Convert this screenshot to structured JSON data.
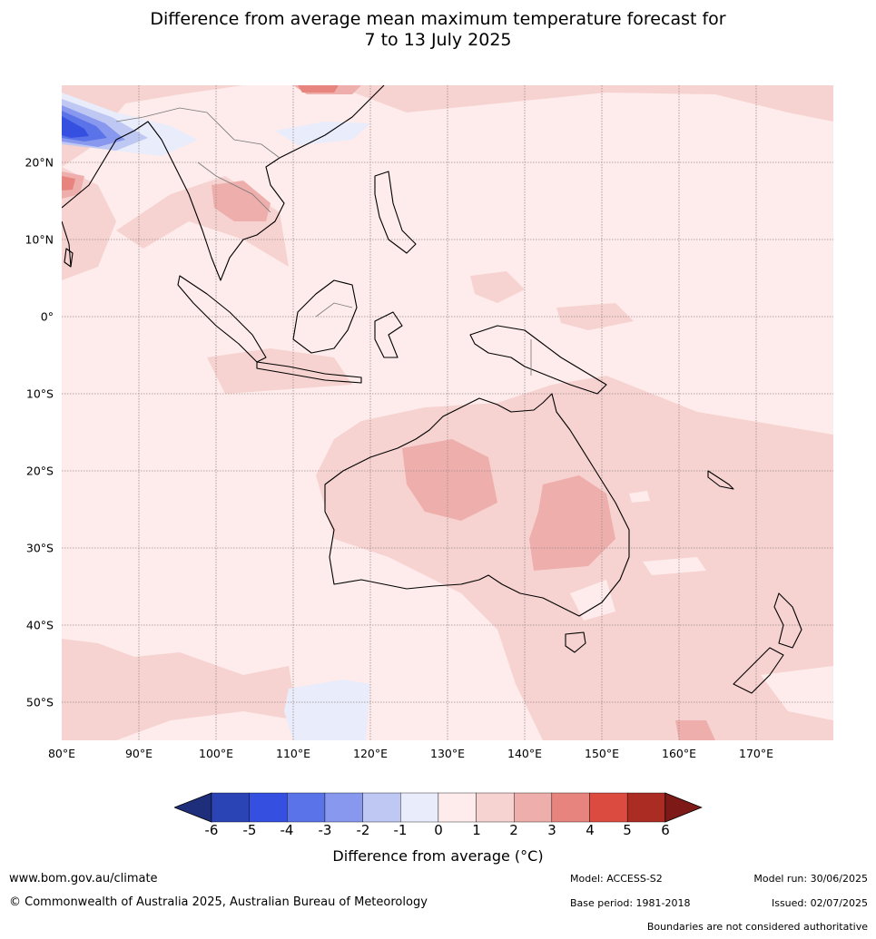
{
  "title": {
    "line1": "Difference from average mean maximum temperature forecast for",
    "line2": "7 to 13 July 2025"
  },
  "map": {
    "lat_labels": [
      "20°N",
      "10°N",
      "0°",
      "10°S",
      "20°S",
      "30°S",
      "40°S",
      "50°S"
    ],
    "lon_labels": [
      "80°E",
      "90°E",
      "100°E",
      "110°E",
      "120°E",
      "130°E",
      "140°E",
      "150°E",
      "160°E",
      "170°E"
    ],
    "lon_range": [
      80,
      180
    ],
    "lat_range": [
      -55,
      30
    ]
  },
  "colorbar": {
    "ticks": [
      "-6",
      "-5",
      "-4",
      "-3",
      "-2",
      "-1",
      "0",
      "1",
      "2",
      "3",
      "4",
      "5",
      "6"
    ],
    "colors": [
      "#1f2e7a",
      "#2b44b5",
      "#3550e0",
      "#5a73e8",
      "#8898ee",
      "#bfc8f3",
      "#e8ecfb",
      "#fdeceb",
      "#f6d3d1",
      "#eeaeab",
      "#e8847e",
      "#dc4b3f",
      "#aa2c23",
      "#7d1a17"
    ],
    "label": "Difference from average (°C)"
  },
  "footer": {
    "website": "www.bom.gov.au/climate",
    "copyright": "© Commonwealth of Australia 2025, Australian Bureau of Meteorology",
    "model": "Model: ACCESS-S2",
    "base_period": "Base period: 1981-2018",
    "model_run": "Model run: 30/06/2025",
    "issued": "Issued: 02/07/2025",
    "disclaimer": "Boundaries are not considered authoritative"
  }
}
